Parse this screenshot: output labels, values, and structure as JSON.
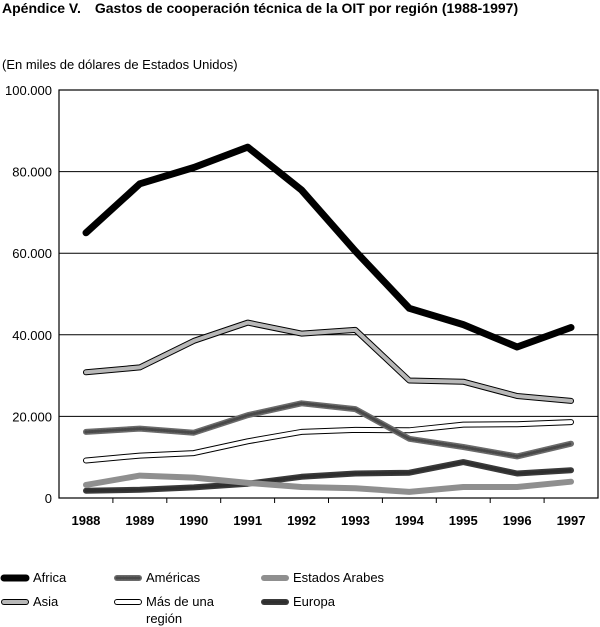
{
  "header": {
    "appendix": "Apéndice V.",
    "title": "Gastos de cooperación técnica de la OIT por región (1988-1997)",
    "units": "(En miles de dólares de Estados Unidos)"
  },
  "chart_data": {
    "type": "line",
    "title": "Gastos de cooperación técnica de la OIT por región (1988-1997)",
    "subtitle": "(En miles de dólares de Estados Unidos)",
    "xlabel": "",
    "ylabel": "",
    "categories": [
      "1988",
      "1989",
      "1990",
      "1991",
      "1992",
      "1993",
      "1994",
      "1995",
      "1996",
      "1997"
    ],
    "ylim": [
      0,
      100000
    ],
    "yticks": [
      0,
      20000,
      40000,
      60000,
      80000,
      100000
    ],
    "ytick_labels": [
      "0",
      "20.000",
      "40.000",
      "60.000",
      "80.000",
      "100.000"
    ],
    "grid": "horizontal",
    "legend_position": "bottom",
    "series": [
      {
        "name": "Africa",
        "color": "#000000",
        "style": "solid",
        "points": [
          [
            0,
            65000
          ],
          [
            1,
            77000
          ],
          [
            2,
            81000
          ],
          [
            3,
            86000
          ],
          [
            4,
            75500
          ],
          [
            5,
            60500
          ],
          [
            6,
            46500
          ],
          [
            7,
            42500
          ],
          [
            8,
            37000
          ],
          [
            9,
            41800
          ]
        ]
      },
      {
        "name": "Américas",
        "color": "#6b6b6b",
        "style": "dotted",
        "points": [
          [
            0,
            16200
          ],
          [
            1,
            17000
          ],
          [
            2,
            16000
          ],
          [
            3,
            20300
          ],
          [
            4,
            23200
          ],
          [
            5,
            21800
          ],
          [
            6,
            14500
          ],
          [
            7,
            12500
          ],
          [
            8,
            10200
          ],
          [
            9,
            13300
          ]
        ]
      },
      {
        "name": "Estados Arabes",
        "color": "#8f8f8f",
        "style": "solid",
        "points": [
          [
            0,
            3200
          ],
          [
            1,
            5500
          ],
          [
            2,
            5000
          ],
          [
            3,
            3700
          ],
          [
            4,
            2700
          ],
          [
            5,
            2400
          ],
          [
            6,
            1500
          ],
          [
            7,
            2700
          ],
          [
            8,
            2700
          ],
          [
            9,
            4000
          ]
        ]
      },
      {
        "name": "Asia",
        "color": "#b8b8b8",
        "style": "outlined",
        "points": [
          [
            0,
            30800
          ],
          [
            1,
            32000
          ],
          [
            2,
            38500
          ],
          [
            3,
            43000
          ],
          [
            4,
            40300
          ],
          [
            5,
            41200
          ],
          [
            6,
            28800
          ],
          [
            7,
            28500
          ],
          [
            8,
            25000
          ],
          [
            9,
            23800
          ]
        ]
      },
      {
        "name": "Más de una región",
        "color": "#ffffff",
        "style": "outlined",
        "points": [
          [
            0,
            9200
          ],
          [
            1,
            10400
          ],
          [
            2,
            11000
          ],
          [
            3,
            13900
          ],
          [
            4,
            16200
          ],
          [
            5,
            16700
          ],
          [
            6,
            16600
          ],
          [
            7,
            18000
          ],
          [
            8,
            18100
          ],
          [
            9,
            18600
          ]
        ]
      },
      {
        "name": "Europa",
        "color": "#3a3a3a",
        "style": "dotted",
        "points": [
          [
            0,
            1800
          ],
          [
            1,
            2000
          ],
          [
            2,
            2600
          ],
          [
            3,
            3500
          ],
          [
            4,
            5200
          ],
          [
            5,
            6000
          ],
          [
            6,
            6200
          ],
          [
            7,
            8800
          ],
          [
            8,
            6000
          ],
          [
            9,
            6800
          ]
        ]
      }
    ]
  }
}
